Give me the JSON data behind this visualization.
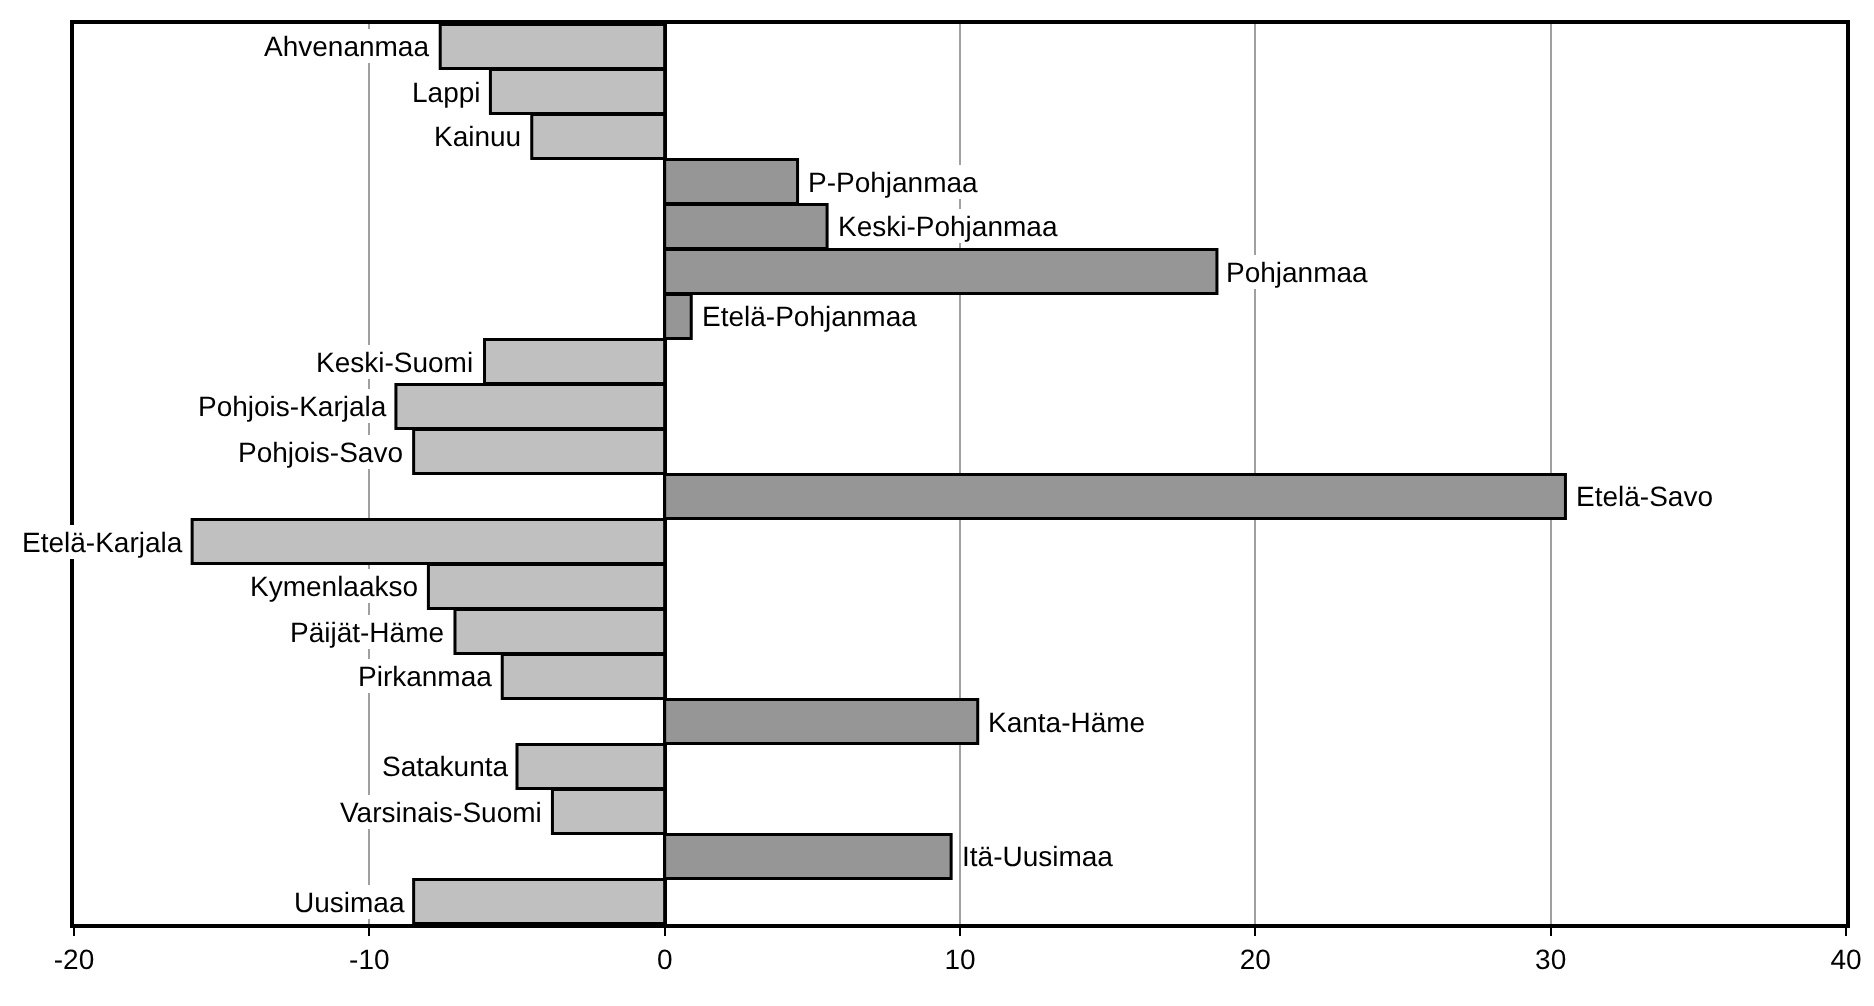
{
  "chart_data": {
    "type": "bar",
    "orientation": "horizontal",
    "categories": [
      "Ahvenanmaa",
      "Lappi",
      "Kainuu",
      "P-Pohjanmaa",
      "Keski-Pohjanmaa",
      "Pohjanmaa",
      "Etelä-Pohjanmaa",
      "Keski-Suomi",
      "Pohjois-Karjala",
      "Pohjois-Savo",
      "Etelä-Savo",
      "Etelä-Karjala",
      "Kymenlaakso",
      "Päijät-Häme",
      "Pirkanmaa",
      "Kanta-Häme",
      "Satakunta",
      "Varsinais-Suomi",
      "Itä-Uusimaa",
      "Uusimaa"
    ],
    "values": [
      -7.6,
      -5.9,
      -4.5,
      4.5,
      5.5,
      18.7,
      0.9,
      -6.1,
      -9.1,
      -8.5,
      30.5,
      -16.0,
      -8.0,
      -7.1,
      -5.5,
      10.6,
      -5.0,
      -3.8,
      9.7,
      -8.5
    ],
    "colors": [
      "#c0c0c0",
      "#c0c0c0",
      "#c0c0c0",
      "#969696",
      "#969696",
      "#969696",
      "#969696",
      "#c0c0c0",
      "#c0c0c0",
      "#c0c0c0",
      "#969696",
      "#c0c0c0",
      "#c0c0c0",
      "#c0c0c0",
      "#c0c0c0",
      "#969696",
      "#c0c0c0",
      "#c0c0c0",
      "#969696",
      "#c0c0c0"
    ],
    "xlim": [
      -20,
      40
    ],
    "xticks": [
      -20,
      -10,
      0,
      10,
      20,
      30,
      40
    ],
    "grid": "x",
    "tick_labels": "x"
  }
}
